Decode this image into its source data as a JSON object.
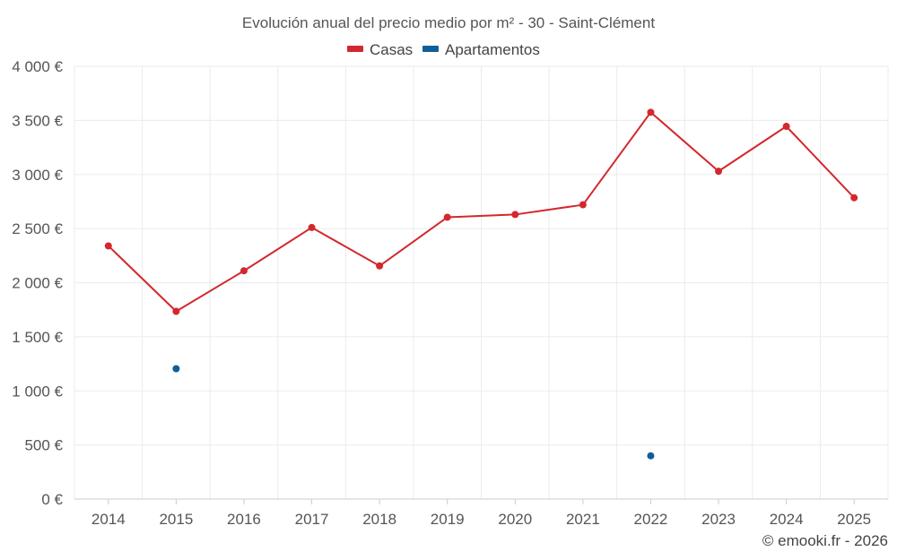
{
  "chart_data": {
    "type": "line",
    "title": "Evolución anual del precio medio por m² - 30 - Saint-Clément",
    "categories": [
      "2014",
      "2015",
      "2016",
      "2017",
      "2018",
      "2019",
      "2020",
      "2021",
      "2022",
      "2023",
      "2024",
      "2025"
    ],
    "ylim": [
      0,
      4000
    ],
    "yticks": [
      0,
      500,
      1000,
      1500,
      2000,
      2500,
      3000,
      3500,
      4000
    ],
    "ytick_labels": [
      "0 €",
      "500 €",
      "1 000 €",
      "1 500 €",
      "2 000 €",
      "2 500 €",
      "3 000 €",
      "3 500 €",
      "4 000 €"
    ],
    "grid": true,
    "legend_position": "top-center",
    "series": [
      {
        "name": "Casas",
        "color": "#d3282d",
        "values": [
          2340,
          1735,
          2110,
          2510,
          2155,
          2605,
          2630,
          2720,
          3575,
          3030,
          3445,
          2785
        ]
      },
      {
        "name": "Apartamentos",
        "color": "#0e5f99",
        "values": [
          null,
          1205,
          null,
          null,
          null,
          null,
          null,
          null,
          400,
          null,
          null,
          null
        ]
      }
    ],
    "credit": "© emooki.fr - 2026"
  }
}
